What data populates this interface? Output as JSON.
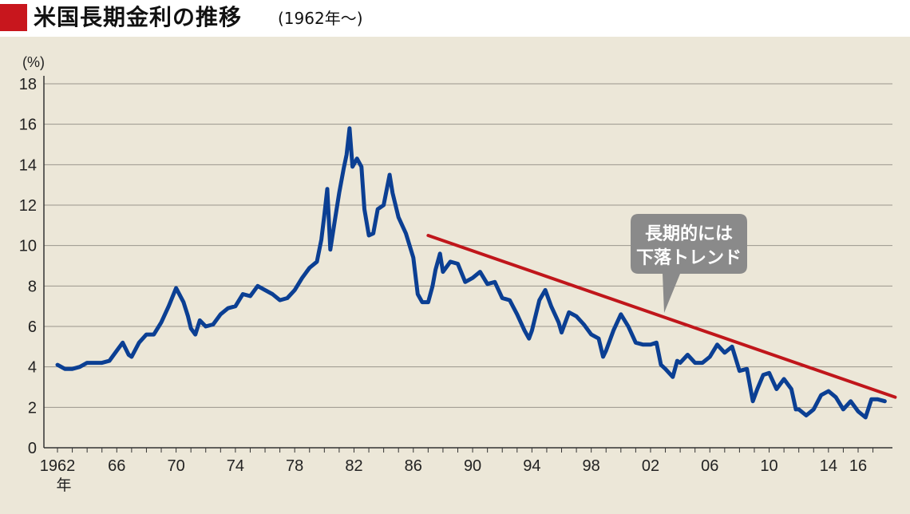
{
  "title": "米国長期金利の推移",
  "subtitle": "(1962年〜)",
  "chart_data": {
    "type": "line",
    "unit_label": "(%)",
    "ylim": [
      0,
      18
    ],
    "yticks": [
      0,
      2,
      4,
      6,
      8,
      10,
      12,
      14,
      16,
      18
    ],
    "xlim": [
      1961.9,
      1918.6
    ],
    "xticks": [
      {
        "year": 1962,
        "label": "1962"
      },
      {
        "year": 1966,
        "label": "66"
      },
      {
        "year": 1970,
        "label": "70"
      },
      {
        "year": 1974,
        "label": "74"
      },
      {
        "year": 1978,
        "label": "78"
      },
      {
        "year": 1982,
        "label": "82"
      },
      {
        "year": 1986,
        "label": "86"
      },
      {
        "year": 1990,
        "label": "90"
      },
      {
        "year": 1994,
        "label": "94"
      },
      {
        "year": 1998,
        "label": "98"
      },
      {
        "year": 2002,
        "label": "02"
      },
      {
        "year": 2006,
        "label": "06"
      },
      {
        "year": 2010,
        "label": "10"
      },
      {
        "year": 2014,
        "label": "14"
      },
      {
        "year": 2016,
        "label": "16"
      }
    ],
    "x_unit_label": "年",
    "grid": true,
    "series": [
      {
        "color": "#0b3f93",
        "points": [
          [
            1962.0,
            4.1
          ],
          [
            1962.5,
            3.9
          ],
          [
            1963.0,
            3.9
          ],
          [
            1963.5,
            4.0
          ],
          [
            1964.0,
            4.2
          ],
          [
            1964.5,
            4.2
          ],
          [
            1965.0,
            4.2
          ],
          [
            1965.5,
            4.3
          ],
          [
            1966.0,
            4.8
          ],
          [
            1966.4,
            5.2
          ],
          [
            1966.8,
            4.6
          ],
          [
            1967.0,
            4.5
          ],
          [
            1967.5,
            5.2
          ],
          [
            1968.0,
            5.6
          ],
          [
            1968.5,
            5.6
          ],
          [
            1969.0,
            6.2
          ],
          [
            1969.5,
            7.0
          ],
          [
            1970.0,
            7.9
          ],
          [
            1970.5,
            7.2
          ],
          [
            1970.8,
            6.5
          ],
          [
            1971.0,
            5.9
          ],
          [
            1971.3,
            5.6
          ],
          [
            1971.6,
            6.3
          ],
          [
            1972.0,
            6.0
          ],
          [
            1972.5,
            6.1
          ],
          [
            1973.0,
            6.6
          ],
          [
            1973.5,
            6.9
          ],
          [
            1974.0,
            7.0
          ],
          [
            1974.5,
            7.6
          ],
          [
            1975.0,
            7.5
          ],
          [
            1975.5,
            8.0
          ],
          [
            1976.0,
            7.8
          ],
          [
            1976.5,
            7.6
          ],
          [
            1977.0,
            7.3
          ],
          [
            1977.5,
            7.4
          ],
          [
            1978.0,
            7.8
          ],
          [
            1978.5,
            8.4
          ],
          [
            1979.0,
            8.9
          ],
          [
            1979.5,
            9.2
          ],
          [
            1979.8,
            10.3
          ],
          [
            1980.0,
            11.5
          ],
          [
            1980.2,
            12.8
          ],
          [
            1980.4,
            9.8
          ],
          [
            1980.7,
            11.2
          ],
          [
            1981.0,
            12.6
          ],
          [
            1981.3,
            13.8
          ],
          [
            1981.5,
            14.5
          ],
          [
            1981.7,
            15.8
          ],
          [
            1981.9,
            13.9
          ],
          [
            1982.2,
            14.3
          ],
          [
            1982.5,
            13.9
          ],
          [
            1982.7,
            11.8
          ],
          [
            1983.0,
            10.5
          ],
          [
            1983.3,
            10.6
          ],
          [
            1983.6,
            11.8
          ],
          [
            1984.0,
            12.0
          ],
          [
            1984.4,
            13.5
          ],
          [
            1984.6,
            12.6
          ],
          [
            1985.0,
            11.4
          ],
          [
            1985.5,
            10.6
          ],
          [
            1986.0,
            9.4
          ],
          [
            1986.3,
            7.6
          ],
          [
            1986.6,
            7.2
          ],
          [
            1987.0,
            7.2
          ],
          [
            1987.3,
            8.0
          ],
          [
            1987.5,
            8.8
          ],
          [
            1987.8,
            9.6
          ],
          [
            1988.0,
            8.7
          ],
          [
            1988.5,
            9.2
          ],
          [
            1989.0,
            9.1
          ],
          [
            1989.5,
            8.2
          ],
          [
            1990.0,
            8.4
          ],
          [
            1990.5,
            8.7
          ],
          [
            1991.0,
            8.1
          ],
          [
            1991.5,
            8.2
          ],
          [
            1992.0,
            7.4
          ],
          [
            1992.5,
            7.3
          ],
          [
            1993.0,
            6.6
          ],
          [
            1993.5,
            5.8
          ],
          [
            1993.8,
            5.4
          ],
          [
            1994.0,
            5.8
          ],
          [
            1994.5,
            7.3
          ],
          [
            1994.9,
            7.8
          ],
          [
            1995.3,
            7.0
          ],
          [
            1995.8,
            6.2
          ],
          [
            1996.0,
            5.7
          ],
          [
            1996.5,
            6.7
          ],
          [
            1997.0,
            6.5
          ],
          [
            1997.5,
            6.1
          ],
          [
            1998.0,
            5.6
          ],
          [
            1998.5,
            5.4
          ],
          [
            1998.8,
            4.5
          ],
          [
            1999.0,
            4.8
          ],
          [
            1999.5,
            5.8
          ],
          [
            2000.0,
            6.6
          ],
          [
            2000.5,
            6.0
          ],
          [
            2001.0,
            5.2
          ],
          [
            2001.5,
            5.1
          ],
          [
            2002.0,
            5.1
          ],
          [
            2002.4,
            5.2
          ],
          [
            2002.7,
            4.1
          ],
          [
            2003.0,
            3.9
          ],
          [
            2003.5,
            3.5
          ],
          [
            2003.8,
            4.3
          ],
          [
            2004.0,
            4.2
          ],
          [
            2004.5,
            4.6
          ],
          [
            2005.0,
            4.2
          ],
          [
            2005.5,
            4.2
          ],
          [
            2006.0,
            4.5
          ],
          [
            2006.5,
            5.1
          ],
          [
            2007.0,
            4.7
          ],
          [
            2007.5,
            5.0
          ],
          [
            2008.0,
            3.8
          ],
          [
            2008.5,
            3.9
          ],
          [
            2008.9,
            2.3
          ],
          [
            2009.2,
            2.9
          ],
          [
            2009.6,
            3.6
          ],
          [
            2010.0,
            3.7
          ],
          [
            2010.5,
            2.9
          ],
          [
            2011.0,
            3.4
          ],
          [
            2011.5,
            2.9
          ],
          [
            2011.8,
            1.9
          ],
          [
            2012.0,
            1.9
          ],
          [
            2012.5,
            1.6
          ],
          [
            2013.0,
            1.9
          ],
          [
            2013.5,
            2.6
          ],
          [
            2014.0,
            2.8
          ],
          [
            2014.5,
            2.5
          ],
          [
            2015.0,
            1.9
          ],
          [
            2015.5,
            2.3
          ],
          [
            2016.0,
            1.8
          ],
          [
            2016.5,
            1.5
          ],
          [
            2016.9,
            2.4
          ],
          [
            2017.3,
            2.4
          ],
          [
            2017.8,
            2.3
          ]
        ]
      }
    ],
    "trendline": {
      "color": "#c0161b",
      "from": [
        1987.0,
        10.5
      ],
      "to": [
        2018.5,
        2.5
      ]
    },
    "annotation": {
      "text_lines": [
        "長期的には",
        "下落トレンド"
      ],
      "bg_color": "#8a8a8a",
      "text_color": "#ffffff"
    }
  }
}
